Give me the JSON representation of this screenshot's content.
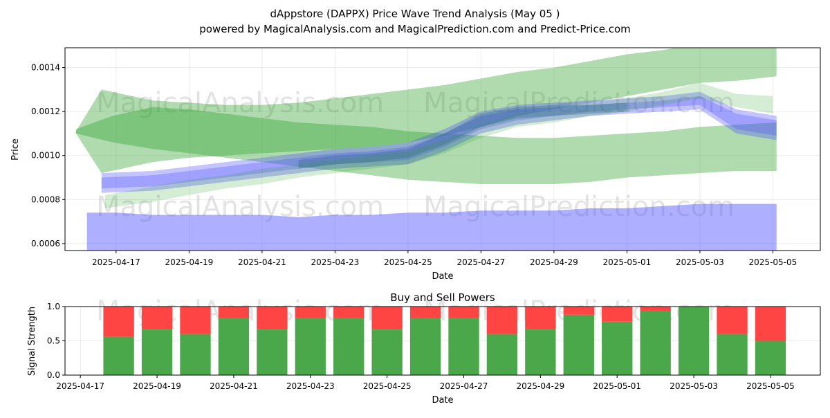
{
  "chart_data": [
    {
      "type": "area",
      "title": "dAppstore (DAPPX) Price Wave Trend Analysis (May 05 )",
      "subtitle": "powered by MagicalAnalysis.com and MagicalPrediction.com and Predict-Price.com",
      "xlabel": "Date",
      "ylabel": "Price",
      "xlim": [
        "2025-04-15.6",
        "2025-05-06.3"
      ],
      "ylim": [
        0.000568,
        0.00149
      ],
      "x_ticks": [
        "2025-04-17",
        "2025-04-19",
        "2025-04-21",
        "2025-04-23",
        "2025-04-25",
        "2025-04-27",
        "2025-04-29",
        "2025-05-01",
        "2025-05-03",
        "2025-05-05"
      ],
      "y_ticks": [
        "0.0006",
        "0.0008",
        "0.0010",
        "0.0012",
        "0.0014"
      ],
      "watermarks": [
        "MagicalAnalysis.com",
        "MagicalPrediction.com",
        "MagicalAnalysis.com",
        "MagicalPrediction.com"
      ],
      "colors": {
        "green": "#2ca02c",
        "blue": "#4d4dff",
        "dark": "#1f5f7a"
      },
      "series": [
        {
          "name": "green-band-falling",
          "x": [
            15.9,
            16.9,
            18,
            19,
            20,
            21,
            22,
            23,
            24,
            25,
            26,
            27,
            28,
            29,
            30,
            31,
            32,
            33,
            34,
            35.1
          ],
          "upper": [
            0.00112,
            0.00118,
            0.00122,
            0.00121,
            0.00119,
            0.00117,
            0.00115,
            0.00114,
            0.00113,
            0.00111,
            0.0011,
            0.00109,
            0.00108,
            0.00108,
            0.00109,
            0.0011,
            0.00111,
            0.00113,
            0.00114,
            0.00115
          ],
          "lower": [
            0.0011,
            0.00106,
            0.00103,
            0.00101,
            0.00099,
            0.00097,
            0.00095,
            0.00093,
            0.00091,
            0.00089,
            0.00088,
            0.00087,
            0.00087,
            0.00087,
            0.00088,
            0.0009,
            0.00091,
            0.00092,
            0.00093,
            0.00093
          ],
          "opacity": 0.38
        },
        {
          "name": "green-band-rising",
          "x": [
            15.9,
            16.6,
            18,
            19,
            20,
            21,
            22,
            23,
            24,
            25,
            26,
            27,
            28,
            29,
            30,
            31,
            32,
            33,
            34,
            35.1
          ],
          "upper": [
            0.00111,
            0.0013,
            0.00125,
            0.00124,
            0.00123,
            0.00123,
            0.00124,
            0.00126,
            0.00128,
            0.0013,
            0.00132,
            0.00135,
            0.00138,
            0.0014,
            0.00143,
            0.00146,
            0.00148,
            0.00151,
            0.00152,
            0.00149
          ],
          "lower": [
            0.0011,
            0.00092,
            0.00097,
            0.00099,
            0.001,
            0.00101,
            0.00102,
            0.00103,
            0.00104,
            0.00106,
            0.00109,
            0.00113,
            0.00118,
            0.00121,
            0.00124,
            0.00127,
            0.0013,
            0.00133,
            0.00134,
            0.00136
          ],
          "opacity": 0.38
        },
        {
          "name": "blue-band-low",
          "x": [
            16.2,
            17,
            18,
            19,
            20,
            21,
            22,
            23,
            24,
            25,
            26,
            27,
            28,
            29,
            30,
            31,
            32,
            33,
            34,
            35.1
          ],
          "upper": [
            0.00074,
            0.00074,
            0.00073,
            0.00073,
            0.00073,
            0.00073,
            0.00072,
            0.00073,
            0.00073,
            0.00074,
            0.00074,
            0.00075,
            0.00075,
            0.00075,
            0.00076,
            0.00076,
            0.00077,
            0.00078,
            0.00078,
            0.00078
          ],
          "lower": [
            0.00056,
            0.00056,
            0.00056,
            0.00056,
            0.00056,
            0.00056,
            0.00056,
            0.00056,
            0.00056,
            0.00056,
            0.00056,
            0.00056,
            0.00056,
            0.00056,
            0.00056,
            0.00056,
            0.00056,
            0.00056,
            0.00056,
            0.00056
          ],
          "opacity": 0.45
        },
        {
          "name": "blue-wave",
          "x": [
            16.6,
            18,
            19,
            20,
            21,
            22,
            23,
            24,
            25,
            26,
            27,
            28,
            29,
            30,
            31,
            32,
            33,
            34,
            35.1
          ],
          "upper": [
            0.00092,
            0.00093,
            0.00095,
            0.00097,
            0.00099,
            0.00101,
            0.00103,
            0.00104,
            0.00106,
            0.00112,
            0.0012,
            0.00123,
            0.00124,
            0.00125,
            0.00126,
            0.00127,
            0.00129,
            0.00121,
            0.00118
          ],
          "lower": [
            0.00083,
            0.00084,
            0.00086,
            0.00088,
            0.0009,
            0.00092,
            0.00094,
            0.00095,
            0.00096,
            0.00102,
            0.0011,
            0.00114,
            0.00116,
            0.00118,
            0.00119,
            0.0012,
            0.00121,
            0.0011,
            0.00107
          ],
          "opacity": 0.33
        },
        {
          "name": "blue-wave-alt",
          "x": [
            16.6,
            18,
            19,
            20,
            21,
            22,
            23,
            24,
            25,
            26,
            27,
            28,
            29,
            30,
            31,
            32,
            33,
            34,
            35.1
          ],
          "upper": [
            0.0009,
            0.00091,
            0.00093,
            0.00095,
            0.00097,
            0.00099,
            0.00101,
            0.00102,
            0.00104,
            0.0011,
            0.00118,
            0.00121,
            0.00122,
            0.00123,
            0.00124,
            0.00125,
            0.00127,
            0.00119,
            0.00116
          ],
          "lower": [
            0.00085,
            0.00086,
            0.00088,
            0.0009,
            0.00092,
            0.00094,
            0.00096,
            0.00097,
            0.00098,
            0.00104,
            0.00112,
            0.00116,
            0.00118,
            0.0012,
            0.00121,
            0.00122,
            0.00123,
            0.00112,
            0.00109
          ],
          "opacity": 0.3
        },
        {
          "name": "dark-core",
          "x": [
            22,
            23,
            24,
            25,
            26,
            27,
            28,
            29,
            30,
            31
          ],
          "upper": [
            0.00098,
            0.001,
            0.00101,
            0.00103,
            0.0011,
            0.00119,
            0.00122,
            0.00123,
            0.00123,
            0.00124
          ],
          "lower": [
            0.00094,
            0.00096,
            0.00097,
            0.00099,
            0.00105,
            0.00113,
            0.00117,
            0.00118,
            0.00119,
            0.0012
          ],
          "opacity": 0.3
        },
        {
          "name": "light-green-trail",
          "x": [
            16.7,
            18,
            19,
            20,
            21,
            22,
            23,
            24,
            25,
            26,
            27,
            28,
            29,
            30,
            31,
            32,
            33,
            34,
            35
          ],
          "upper": [
            0.00082,
            0.00086,
            0.00089,
            0.00091,
            0.00094,
            0.00096,
            0.00098,
            0.001,
            0.00102,
            0.00107,
            0.00114,
            0.00119,
            0.00121,
            0.00124,
            0.00126,
            0.00129,
            0.00133,
            0.00128,
            0.00127
          ],
          "lower": [
            0.00076,
            0.00079,
            0.00082,
            0.00085,
            0.00087,
            0.0009,
            0.00092,
            0.00094,
            0.00096,
            0.00101,
            0.00108,
            0.00113,
            0.00115,
            0.00118,
            0.0012,
            0.00123,
            0.00126,
            0.00122,
            0.00119
          ],
          "opacity": 0.2
        }
      ]
    },
    {
      "type": "bar",
      "title": "Buy and Sell Powers",
      "xlabel": "Date",
      "ylabel": "Signal Strength",
      "ylim": [
        0,
        1
      ],
      "xlim": [
        "2025-04-16.6",
        "2025-05-06.3"
      ],
      "x_ticks": [
        "2025-04-17",
        "2025-04-19",
        "2025-04-21",
        "2025-04-23",
        "2025-04-25",
        "2025-04-27",
        "2025-04-29",
        "2025-05-01",
        "2025-05-03",
        "2025-05-05"
      ],
      "y_ticks": [
        "0.0",
        "0.5",
        "1.0"
      ],
      "categories": [
        "2025-04-18",
        "2025-04-19",
        "2025-04-20",
        "2025-04-21",
        "2025-04-22",
        "2025-04-23",
        "2025-04-24",
        "2025-04-25",
        "2025-04-26",
        "2025-04-27",
        "2025-04-28",
        "2025-04-29",
        "2025-04-30",
        "2025-05-01",
        "2025-05-02",
        "2025-05-03",
        "2025-05-04",
        "2025-05-05"
      ],
      "series": [
        {
          "name": "Buy",
          "color": "#4aa84a",
          "values": [
            0.56,
            0.67,
            0.6,
            0.83,
            0.67,
            0.83,
            0.83,
            0.67,
            0.83,
            0.83,
            0.6,
            0.67,
            0.88,
            0.78,
            0.94,
            1.0,
            0.6,
            0.5
          ]
        },
        {
          "name": "Sell",
          "color": "#ff4444",
          "values": [
            0.44,
            0.33,
            0.4,
            0.17,
            0.33,
            0.17,
            0.17,
            0.33,
            0.17,
            0.17,
            0.4,
            0.33,
            0.12,
            0.22,
            0.06,
            0.0,
            0.4,
            0.5
          ]
        }
      ]
    }
  ]
}
